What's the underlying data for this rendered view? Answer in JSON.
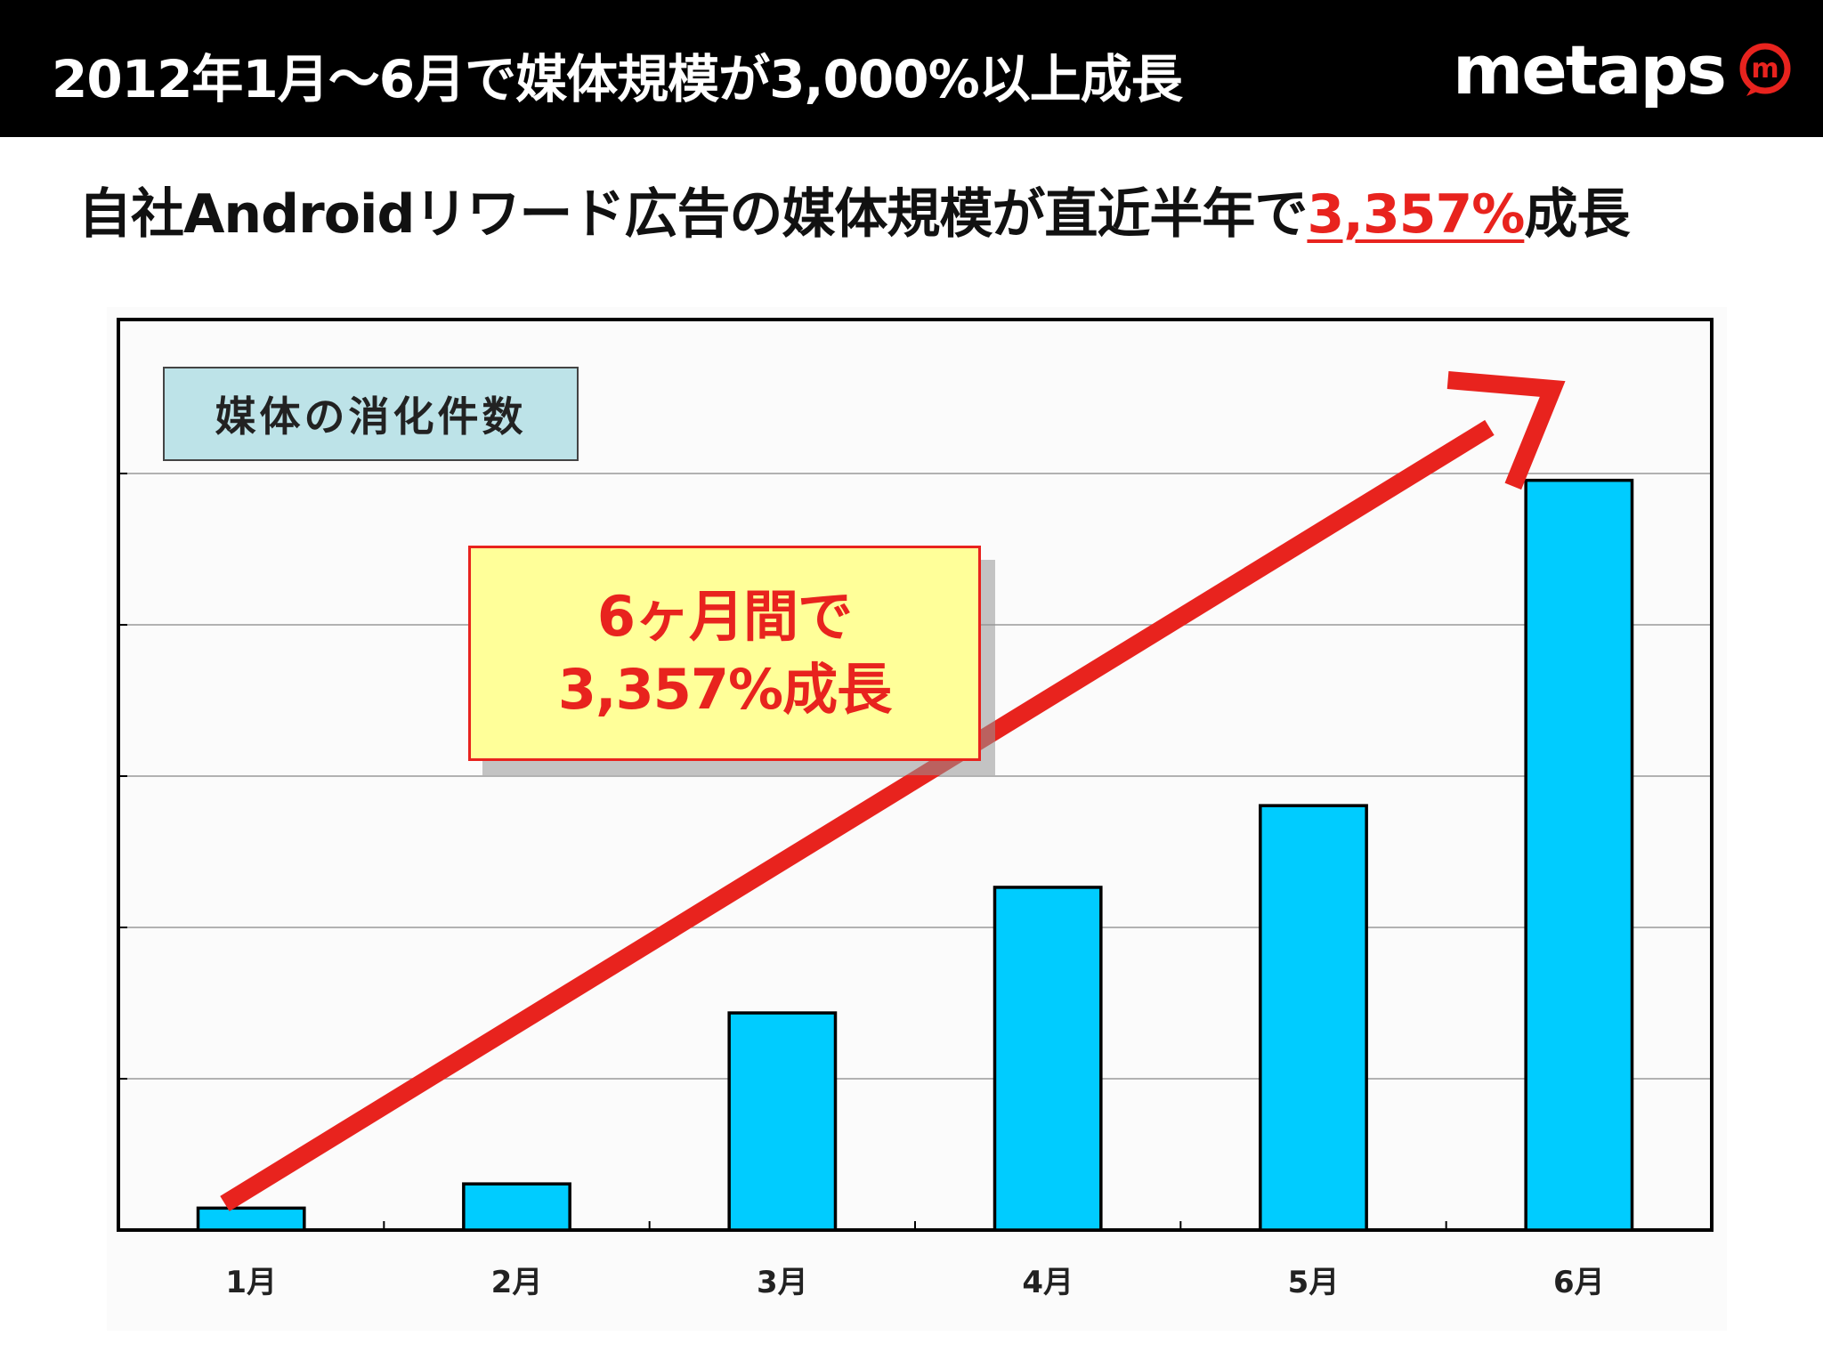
{
  "header": {
    "title": "2012年1月～6月で媒体規模が3,000%以上成長",
    "brand": "metaps",
    "brand_mark": "m"
  },
  "subtitle": {
    "prefix": "自社Androidリワード広告の媒体規模が直近半年で",
    "highlight": "3,357%",
    "suffix": "成長"
  },
  "colors": {
    "bar": "#00ccff",
    "accent": "#e8231e",
    "callout_bg": "#ffff99",
    "label_bg": "#bde3e8"
  },
  "chart_data": {
    "type": "bar",
    "series_label": "媒体の消化件数",
    "categories": [
      "1月",
      "2月",
      "3月",
      "4月",
      "5月",
      "6月"
    ],
    "values": [
      2.9,
      6.1,
      28.7,
      45.3,
      56.1,
      99.1
    ],
    "ylim": [
      0,
      100
    ],
    "y_gridlines": 5,
    "y_tick_labels_shown": false,
    "grid": true,
    "trend_arrow": true,
    "annotation": {
      "line1": "6ヶ月間で",
      "line2": "3,357%成長"
    }
  }
}
